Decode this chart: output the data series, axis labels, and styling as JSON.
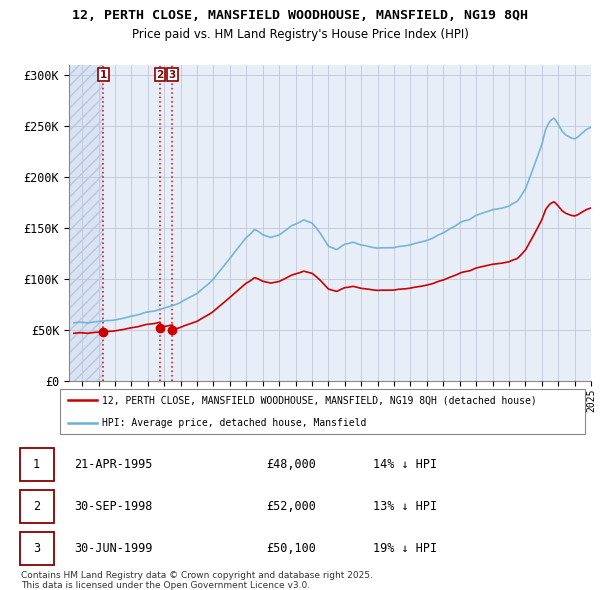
{
  "title_line1": "12, PERTH CLOSE, MANSFIELD WOODHOUSE, MANSFIELD, NG19 8QH",
  "title_line2": "Price paid vs. HM Land Registry's House Price Index (HPI)",
  "ylim": [
    0,
    310000
  ],
  "yticks": [
    0,
    50000,
    100000,
    150000,
    200000,
    250000,
    300000
  ],
  "ytick_labels": [
    "£0",
    "£50K",
    "£100K",
    "£150K",
    "£200K",
    "£250K",
    "£300K"
  ],
  "hpi_color": "#6BAED6",
  "price_color": "#CC0000",
  "bg_color": "#E8EEF8",
  "hatch_bg": "#D0DCF0",
  "grid_color": "#C0C8D8",
  "sale_year_nums": [
    1995.3,
    1998.75,
    1999.5
  ],
  "sale_prices": [
    48000,
    52000,
    50100
  ],
  "sale_labels": [
    "1",
    "2",
    "3"
  ],
  "sale_date_strs": [
    "21-APR-1995",
    "30-SEP-1998",
    "30-JUN-1999"
  ],
  "sale_price_strs": [
    "£48,000",
    "£52,000",
    "£50,100"
  ],
  "sale_hpi_strs": [
    "14% ↓ HPI",
    "13% ↓ HPI",
    "19% ↓ HPI"
  ],
  "legend_line1": "12, PERTH CLOSE, MANSFIELD WOODHOUSE, MANSFIELD, NG19 8QH (detached house)",
  "legend_line2": "HPI: Average price, detached house, Mansfield",
  "footnote": "Contains HM Land Registry data © Crown copyright and database right 2025.\nThis data is licensed under the Open Government Licence v3.0.",
  "xstart": 1993.5,
  "xend": 2025.0
}
